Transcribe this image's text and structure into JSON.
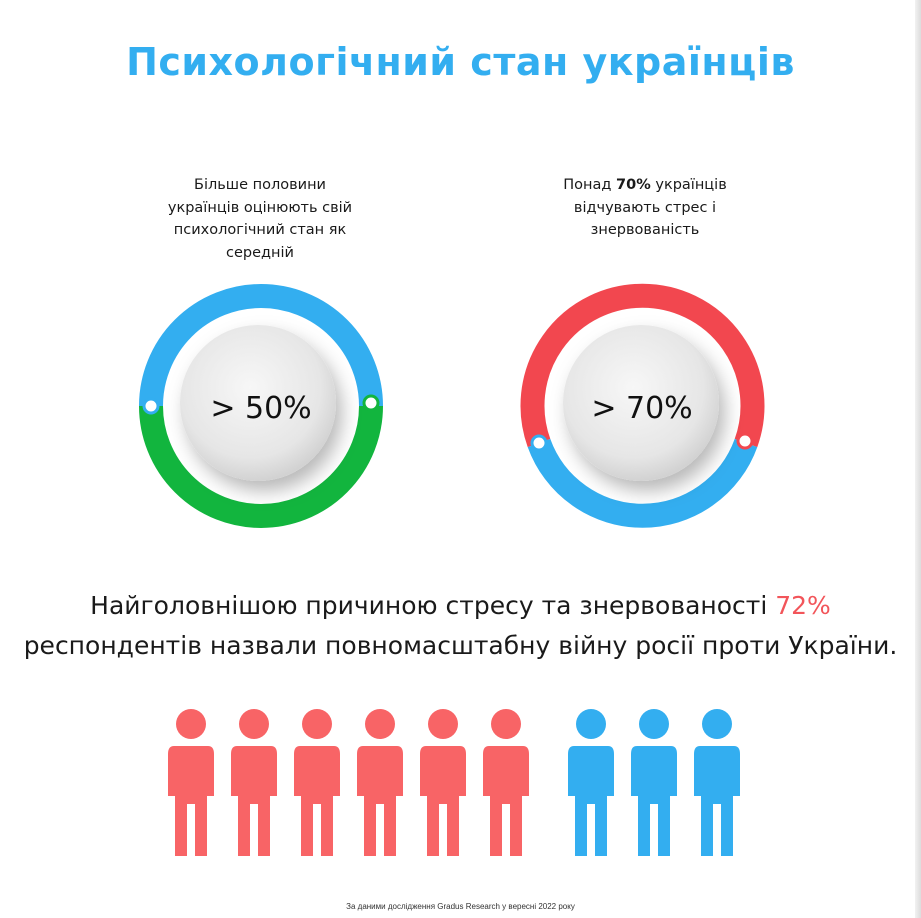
{
  "title": "Психологічний стан українців",
  "left_card": {
    "caption": "Більше половини українців оцінюють свій психологічний стан як середній",
    "value": "> 50%",
    "ring_colors": {
      "top": "#33aef0",
      "bottom": "#12b53e"
    }
  },
  "right_card": {
    "caption_prefix": "Понад ",
    "caption_bold": "70%",
    "caption_suffix": " українців відчувають стрес і знервованість",
    "value": "> 70%",
    "ring_colors": {
      "top": "#f2474f",
      "bottom": "#33aef0"
    }
  },
  "statement": {
    "before": "Найголовнішою причиною стресу та знервованості ",
    "highlight": "72%",
    "after": " респондентів назвали повномасштабну війну росії проти України."
  },
  "people": {
    "stressed_count": 6,
    "not_stressed_count": 3,
    "stressed_color": "#f86466",
    "other_color": "#33aef0",
    "icon": "person-icon"
  },
  "footnote": "За даними дослідження Gradus Research у вересні 2022 року"
}
